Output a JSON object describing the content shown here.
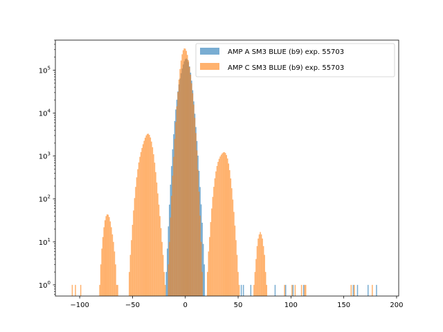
{
  "chart_data": {
    "type": "histogram",
    "title": "",
    "xlabel": "",
    "ylabel": "",
    "xlim": [
      -123,
      202
    ],
    "ylim": [
      0.55,
      500000
    ],
    "yscale": "log",
    "grid": false,
    "legend_position": "upper right",
    "x_ticks": [
      -100,
      -50,
      0,
      50,
      100,
      150,
      200
    ],
    "x_tick_labels": [
      "−100",
      "−50",
      "0",
      "50",
      "100",
      "150",
      "200"
    ],
    "y_ticks": [
      1,
      10,
      100,
      1000,
      10000,
      100000
    ],
    "y_tick_labels": [
      {
        "base": "10",
        "exp": "0"
      },
      {
        "base": "10",
        "exp": "1"
      },
      {
        "base": "10",
        "exp": "2"
      },
      {
        "base": "10",
        "exp": "3"
      },
      {
        "base": "10",
        "exp": "4"
      },
      {
        "base": "10",
        "exp": "5"
      }
    ],
    "series": [
      {
        "name": "AMP A SM3 BLUE (b9) exp. 55703",
        "color": "#1f77b4",
        "alpha": 0.6,
        "peaks": [
          {
            "center": 0,
            "height": 180000,
            "sigma": 3.8
          }
        ],
        "range": [
          -20,
          20
        ],
        "outliers": [
          53,
          55,
          62,
          85,
          95,
          102,
          112,
          159,
          163,
          173,
          181
        ]
      },
      {
        "name": "AMP C SM3 BLUE (b9) exp. 55703",
        "color": "#ff7f0e",
        "alpha": 0.6,
        "peaks": [
          {
            "center": 0,
            "height": 300000,
            "sigma": 3.3
          },
          {
            "center": -36.5,
            "height": 3200,
            "sigma": 4.3
          },
          {
            "center": 35.5,
            "height": 1400,
            "sigma": 4.1
          },
          {
            "center": -73,
            "height": 45,
            "sigma": 3.0
          },
          {
            "center": 71,
            "height": 14,
            "sigma": 2.7
          }
        ],
        "range": [
          -82,
          80
        ],
        "outliers": [
          -107,
          -104,
          -99,
          -66,
          -64,
          -22,
          22,
          25,
          28,
          33,
          37,
          43,
          47,
          50,
          94,
          101,
          104,
          110,
          113,
          114,
          157,
          160,
          177
        ]
      }
    ]
  }
}
